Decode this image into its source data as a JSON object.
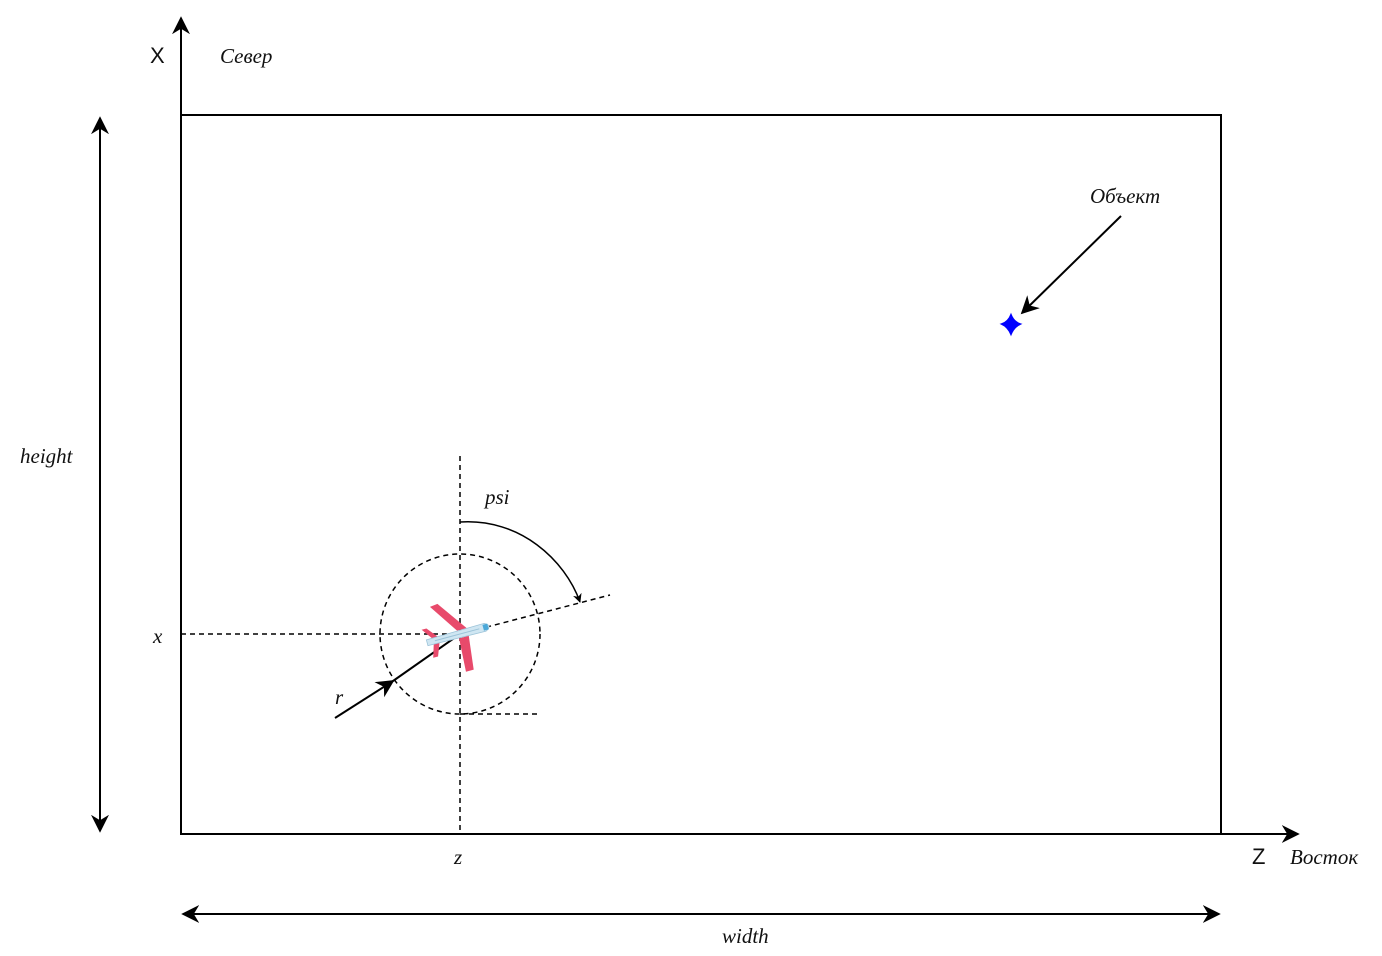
{
  "labels": {
    "x_axis": "X",
    "north": "Север",
    "z_axis": "Z",
    "east": "Восток",
    "height": "height",
    "width": "width",
    "object": "Объект",
    "psi": "psi",
    "x_coord": "x",
    "z_coord": "z",
    "r": "r"
  },
  "colors": {
    "line": "#000000",
    "object_marker": "#0000ff",
    "plane_body": "#e84a6b",
    "plane_fuselage": "#cfe6f2",
    "plane_window": "#4aa8d8"
  },
  "icons": {
    "vehicle": "airplane-icon",
    "target": "four-point-star-icon"
  }
}
